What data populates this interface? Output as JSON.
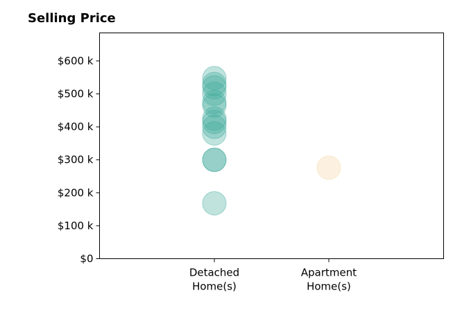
{
  "chart_data": {
    "type": "scatter",
    "title": "Selling Price",
    "xlabel": "",
    "ylabel": "",
    "categories": [
      "Detached\nHome(s)",
      "Apartment\nHome(s)"
    ],
    "ylim": [
      0,
      685000
    ],
    "yticks": [
      {
        "value": 0,
        "label": "$0"
      },
      {
        "value": 100000,
        "label": "$100 k"
      },
      {
        "value": 200000,
        "label": "$200 k"
      },
      {
        "value": 300000,
        "label": "$300 k"
      },
      {
        "value": 400000,
        "label": "$400 k"
      },
      {
        "value": 500000,
        "label": "$500 k"
      },
      {
        "value": 600000,
        "label": "$600 k"
      }
    ],
    "series": [
      {
        "category_index": 0,
        "color": "#3fa99b",
        "values": [
          548000,
          530000,
          520000,
          500000,
          475000,
          465000,
          425000,
          415000,
          400000,
          380000,
          300000,
          300000,
          168000
        ]
      },
      {
        "category_index": 1,
        "color": "#f5d5a0",
        "values": [
          276000
        ]
      }
    ],
    "grid": false,
    "legend": "none"
  }
}
